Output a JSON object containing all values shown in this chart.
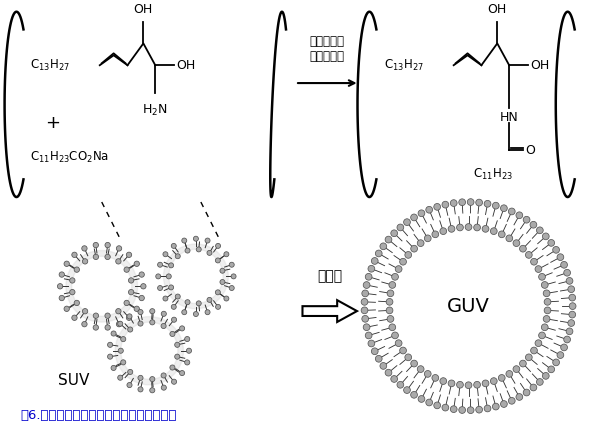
{
  "title": "図6．膜内でのセラミド合成による膜融合",
  "caption": "図6.　膜内でのセラミド合成による膜融合",
  "caption_color": "#0000cc",
  "bg_color": "#ffffff",
  "lipid_head_color": "#aaaaaa",
  "lipid_head_edge": "#555555",
  "vesicle_fill": "#ffffff",
  "text_color": "#000000",
  "reaction_label": "界面集積型\n脱水縮合剤",
  "reaction_arrow": "→",
  "membrane_fusion_label": "膜融合",
  "SUV_label": "SUV",
  "GUV_label": "GUV",
  "reactant_left_line1": "C",
  "reactant_left_line2": "13",
  "figsize": [
    6.0,
    4.34
  ],
  "dpi": 100
}
